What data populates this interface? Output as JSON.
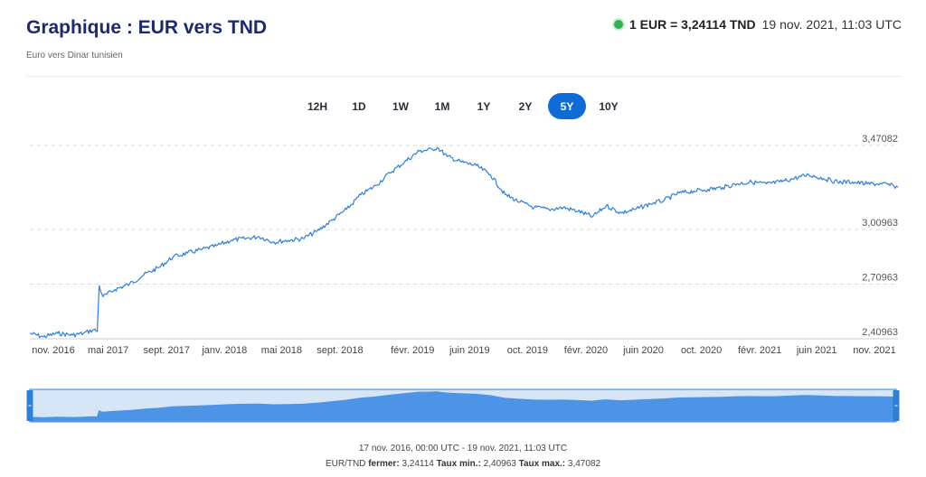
{
  "header": {
    "title": "Graphique : EUR vers TND",
    "subtitle": "Euro vers Dinar tunisien",
    "rate_text": "1 EUR = 3,24114 TND",
    "timestamp": "19 nov. 2021, 11:03 UTC"
  },
  "range_buttons": [
    "12H",
    "1D",
    "1W",
    "1M",
    "1Y",
    "2Y",
    "5Y",
    "10Y"
  ],
  "active_range": "5Y",
  "footer": {
    "period": "17 nov. 2016, 00:00 UTC - 19 nov. 2021, 11:03 UTC",
    "pair": "EUR/TND",
    "close_label": "fermer:",
    "close_value": "3,24114",
    "min_label": "Taux min.:",
    "min_value": "2,40963",
    "max_label": "Taux max.:",
    "max_value": "3,47082"
  },
  "colors": {
    "line": "#2e7fd6",
    "navigator_fill": "#4d94e6",
    "navigator_bg": "#d6e6f7",
    "active_button": "#0f6cd6",
    "title": "#1d2a6b"
  },
  "chart_data": {
    "type": "line",
    "title": "",
    "xlabel": "",
    "ylabel": "",
    "x_tick_labels": [
      "nov. 2016",
      "mai 2017",
      "sept. 2017",
      "janv. 2018",
      "mai 2018",
      "sept. 2018",
      "févr. 2019",
      "juin 2019",
      "oct. 2019",
      "févr. 2020",
      "juin 2020",
      "oct. 2020",
      "févr. 2021",
      "juin 2021",
      "nov. 2021"
    ],
    "x_tick_dates": [
      "2016-11-15",
      "2017-05-01",
      "2017-09-01",
      "2018-01-01",
      "2018-05-01",
      "2018-09-01",
      "2019-02-01",
      "2019-06-01",
      "2019-10-01",
      "2020-02-01",
      "2020-06-01",
      "2020-10-01",
      "2021-02-01",
      "2021-06-01",
      "2021-11-01"
    ],
    "y_tick_labels": [
      "2,40963",
      "2,70963",
      "3,00963",
      "3,47082"
    ],
    "y_tick_values": [
      2.40963,
      2.70963,
      3.00963,
      3.47082
    ],
    "ylim": [
      2.40963,
      3.47082
    ],
    "xlim": [
      "2016-11-17",
      "2021-11-19"
    ],
    "grid": true,
    "series": [
      {
        "name": "EUR/TND",
        "points": [
          [
            "2016-11-17",
            2.44
          ],
          [
            "2016-12-15",
            2.42
          ],
          [
            "2017-01-15",
            2.44
          ],
          [
            "2017-02-15",
            2.43
          ],
          [
            "2017-03-10",
            2.44
          ],
          [
            "2017-04-01",
            2.46
          ],
          [
            "2017-04-08",
            2.45
          ],
          [
            "2017-04-12",
            2.7
          ],
          [
            "2017-04-20",
            2.64
          ],
          [
            "2017-05-15",
            2.68
          ],
          [
            "2017-06-15",
            2.71
          ],
          [
            "2017-07-15",
            2.76
          ],
          [
            "2017-08-15",
            2.8
          ],
          [
            "2017-09-15",
            2.86
          ],
          [
            "2017-10-15",
            2.88
          ],
          [
            "2017-11-15",
            2.9
          ],
          [
            "2017-12-15",
            2.92
          ],
          [
            "2018-01-15",
            2.95
          ],
          [
            "2018-02-15",
            2.96
          ],
          [
            "2018-03-15",
            2.97
          ],
          [
            "2018-04-15",
            2.94
          ],
          [
            "2018-05-15",
            2.95
          ],
          [
            "2018-06-15",
            2.96
          ],
          [
            "2018-07-15",
            3.0
          ],
          [
            "2018-08-15",
            3.06
          ],
          [
            "2018-09-15",
            3.12
          ],
          [
            "2018-10-15",
            3.2
          ],
          [
            "2018-11-15",
            3.25
          ],
          [
            "2018-12-15",
            3.32
          ],
          [
            "2019-01-15",
            3.38
          ],
          [
            "2019-02-15",
            3.44
          ],
          [
            "2019-03-15",
            3.45
          ],
          [
            "2019-03-25",
            3.46
          ],
          [
            "2019-04-15",
            3.41
          ],
          [
            "2019-05-15",
            3.38
          ],
          [
            "2019-06-15",
            3.36
          ],
          [
            "2019-07-15",
            3.31
          ],
          [
            "2019-08-15",
            3.2
          ],
          [
            "2019-09-15",
            3.16
          ],
          [
            "2019-10-15",
            3.13
          ],
          [
            "2019-11-15",
            3.12
          ],
          [
            "2019-12-15",
            3.13
          ],
          [
            "2020-01-15",
            3.11
          ],
          [
            "2020-02-15",
            3.08
          ],
          [
            "2020-03-15",
            3.14
          ],
          [
            "2020-04-15",
            3.1
          ],
          [
            "2020-05-15",
            3.12
          ],
          [
            "2020-06-15",
            3.15
          ],
          [
            "2020-07-15",
            3.17
          ],
          [
            "2020-08-15",
            3.21
          ],
          [
            "2020-09-15",
            3.22
          ],
          [
            "2020-10-15",
            3.23
          ],
          [
            "2020-11-15",
            3.24
          ],
          [
            "2020-12-15",
            3.26
          ],
          [
            "2021-01-15",
            3.27
          ],
          [
            "2021-02-15",
            3.26
          ],
          [
            "2021-03-15",
            3.27
          ],
          [
            "2021-04-15",
            3.29
          ],
          [
            "2021-05-15",
            3.31
          ],
          [
            "2021-06-15",
            3.29
          ],
          [
            "2021-07-15",
            3.27
          ],
          [
            "2021-08-15",
            3.27
          ],
          [
            "2021-09-15",
            3.26
          ],
          [
            "2021-10-15",
            3.26
          ],
          [
            "2021-11-10",
            3.25
          ],
          [
            "2021-11-19",
            3.24114
          ]
        ]
      }
    ]
  }
}
